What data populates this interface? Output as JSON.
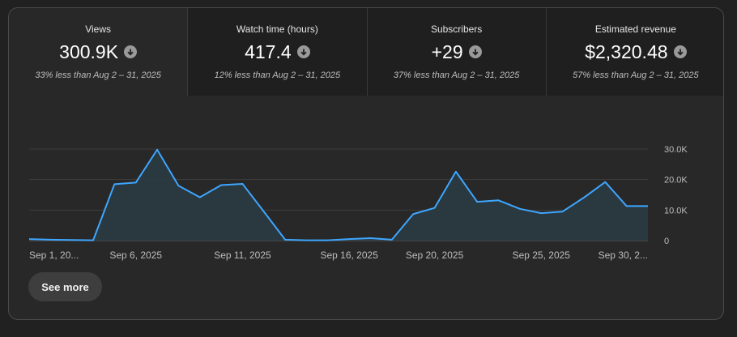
{
  "metrics": [
    {
      "label": "Views",
      "value": "300.9K",
      "compare": "33% less than Aug 2 – 31, 2025",
      "trend_icon": "arrow-down-circle-icon"
    },
    {
      "label": "Watch time (hours)",
      "value": "417.4",
      "compare": "12% less than Aug 2 – 31, 2025",
      "trend_icon": "arrow-down-circle-icon"
    },
    {
      "label": "Subscribers",
      "value": "+29",
      "compare": "37% less than Aug 2 – 31, 2025",
      "trend_icon": "arrow-down-circle-icon"
    },
    {
      "label": "Estimated revenue",
      "value": "$2,320.48",
      "compare": "57% less than Aug 2 – 31, 2025",
      "trend_icon": "arrow-down-circle-icon"
    }
  ],
  "chart_data": {
    "type": "area",
    "x": [
      "Sep 1",
      "Sep 2",
      "Sep 3",
      "Sep 4",
      "Sep 5",
      "Sep 6",
      "Sep 7",
      "Sep 8",
      "Sep 9",
      "Sep 10",
      "Sep 11",
      "Sep 12",
      "Sep 13",
      "Sep 14",
      "Sep 15",
      "Sep 16",
      "Sep 17",
      "Sep 18",
      "Sep 19",
      "Sep 20",
      "Sep 21",
      "Sep 22",
      "Sep 23",
      "Sep 24",
      "Sep 25",
      "Sep 26",
      "Sep 27",
      "Sep 28",
      "Sep 29",
      "Sep 30"
    ],
    "values": [
      500,
      300,
      200,
      100,
      18500,
      19000,
      29800,
      18000,
      14200,
      18200,
      18600,
      9500,
      300,
      100,
      100,
      500,
      800,
      300,
      8700,
      10700,
      22600,
      12700,
      13200,
      10400,
      9000,
      9500,
      14100,
      19200,
      11300,
      11300
    ],
    "x_tick_labels": [
      "Sep 1, 20...",
      "Sep 6, 2025",
      "Sep 11, 2025",
      "Sep 16, 2025",
      "Sep 20, 2025",
      "Sep 25, 2025",
      "Sep 30, 2..."
    ],
    "x_tick_index": [
      0,
      5,
      10,
      15,
      19,
      24,
      29
    ],
    "y_tick_labels": [
      "0",
      "10.0K",
      "20.0K",
      "30.0K"
    ],
    "y_tick_values": [
      0,
      10000,
      20000,
      30000
    ],
    "ylim": [
      0,
      30000
    ],
    "grid": true,
    "line_color": "#3ea6ff",
    "fill_color": "#2a3b44"
  },
  "actions": {
    "see_more_label": "See more"
  }
}
